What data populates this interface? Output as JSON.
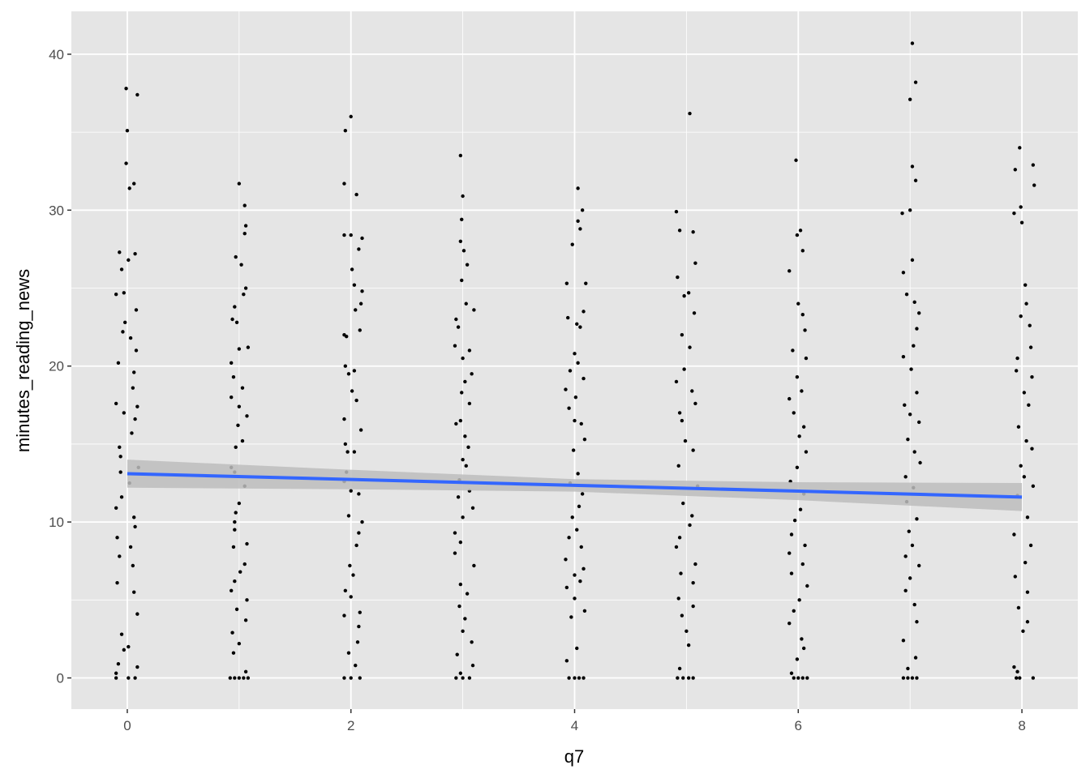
{
  "chart_data": {
    "type": "scatter",
    "title": "",
    "xlabel": "q7",
    "ylabel": "minutes_reading_news",
    "xlim": [
      -0.5,
      8.5
    ],
    "ylim": [
      -2,
      42.75
    ],
    "xticks": [
      0,
      2,
      4,
      6,
      8
    ],
    "yticks": [
      0,
      10,
      20,
      30,
      40
    ],
    "grid": true,
    "jitter": true,
    "colors": {
      "panel": "#e5e5e5",
      "grid": "#ffffff",
      "points": "#000000",
      "smooth_line": "#3366ff",
      "ci_band": "#bdbdbd"
    },
    "smooth": {
      "method": "linear",
      "x": [
        0,
        2,
        4,
        6,
        8
      ],
      "y": [
        13.1,
        12.73,
        12.35,
        11.98,
        11.6
      ],
      "ci_lower": [
        12.2,
        12.1,
        11.95,
        11.4,
        10.7
      ],
      "ci_upper": [
        14.0,
        13.35,
        12.75,
        12.55,
        12.5
      ]
    },
    "points": [
      [
        -0.01,
        37.8
      ],
      [
        0.09,
        37.4
      ],
      [
        0,
        35.1
      ],
      [
        -0.01,
        33
      ],
      [
        0.02,
        31.4
      ],
      [
        0.06,
        31.7
      ],
      [
        -0.07,
        27.3
      ],
      [
        0.07,
        27.2
      ],
      [
        0.01,
        26.8
      ],
      [
        -0.05,
        26.2
      ],
      [
        -0.1,
        24.6
      ],
      [
        -0.03,
        24.7
      ],
      [
        0.08,
        23.6
      ],
      [
        -0.02,
        22.8
      ],
      [
        -0.04,
        22.2
      ],
      [
        0.03,
        21.8
      ],
      [
        0.08,
        21
      ],
      [
        -0.08,
        20.2
      ],
      [
        0.06,
        19.6
      ],
      [
        0.05,
        18.6
      ],
      [
        -0.1,
        17.6
      ],
      [
        0.09,
        17.4
      ],
      [
        -0.03,
        17
      ],
      [
        0.07,
        16.6
      ],
      [
        0.04,
        15.7
      ],
      [
        -0.07,
        14.8
      ],
      [
        -0.06,
        14.2
      ],
      [
        0.1,
        13.5
      ],
      [
        -0.06,
        13.2
      ],
      [
        0.02,
        12.5
      ],
      [
        -0.05,
        11.6
      ],
      [
        -0.1,
        10.9
      ],
      [
        0.06,
        10.3
      ],
      [
        0.07,
        9.7
      ],
      [
        -0.09,
        9
      ],
      [
        0.03,
        8.4
      ],
      [
        -0.07,
        7.8
      ],
      [
        0.05,
        7.2
      ],
      [
        -0.09,
        6.1
      ],
      [
        0.06,
        5.5
      ],
      [
        0.09,
        4.1
      ],
      [
        -0.05,
        2.8
      ],
      [
        -0.03,
        1.8
      ],
      [
        0.01,
        2
      ],
      [
        0.09,
        0.7
      ],
      [
        -0.1,
        0.3
      ],
      [
        -0.1,
        0
      ],
      [
        0.01,
        0
      ],
      [
        0.07,
        0
      ],
      [
        -0.08,
        0.9
      ],
      [
        1,
        31.7
      ],
      [
        1.05,
        30.3
      ],
      [
        1.06,
        29
      ],
      [
        1.05,
        28.5
      ],
      [
        0.97,
        27
      ],
      [
        1.02,
        26.5
      ],
      [
        1.06,
        25
      ],
      [
        1.04,
        24.6
      ],
      [
        0.96,
        23.8
      ],
      [
        0.94,
        23
      ],
      [
        0.98,
        22.8
      ],
      [
        1.08,
        21.2
      ],
      [
        1,
        21.1
      ],
      [
        0.93,
        20.2
      ],
      [
        0.95,
        19.3
      ],
      [
        1.03,
        18.6
      ],
      [
        0.93,
        18
      ],
      [
        1,
        17.4
      ],
      [
        1.07,
        16.8
      ],
      [
        0.99,
        16.2
      ],
      [
        1.03,
        15.2
      ],
      [
        0.97,
        14.8
      ],
      [
        0.93,
        13.5
      ],
      [
        0.96,
        13.2
      ],
      [
        1.05,
        12.3
      ],
      [
        1,
        11.2
      ],
      [
        0.97,
        10.6
      ],
      [
        0.96,
        10
      ],
      [
        0.96,
        9.5
      ],
      [
        1.07,
        8.6
      ],
      [
        0.95,
        8.4
      ],
      [
        1.05,
        7.3
      ],
      [
        1.01,
        6.8
      ],
      [
        0.96,
        6.2
      ],
      [
        0.93,
        5.6
      ],
      [
        1.07,
        5
      ],
      [
        0.98,
        4.4
      ],
      [
        1.06,
        3.7
      ],
      [
        0.94,
        2.9
      ],
      [
        1,
        2.2
      ],
      [
        0.95,
        1.6
      ],
      [
        1.06,
        0.4
      ],
      [
        0.92,
        0
      ],
      [
        0.96,
        0
      ],
      [
        1,
        0
      ],
      [
        1.04,
        0
      ],
      [
        1.08,
        0
      ],
      [
        2,
        36
      ],
      [
        1.95,
        35.1
      ],
      [
        1.94,
        31.7
      ],
      [
        2.05,
        31
      ],
      [
        1.94,
        28.4
      ],
      [
        2,
        28.4
      ],
      [
        2.1,
        28.2
      ],
      [
        2.07,
        27.5
      ],
      [
        2.01,
        26.2
      ],
      [
        2.03,
        25.2
      ],
      [
        2.1,
        24.8
      ],
      [
        2.09,
        24
      ],
      [
        2.04,
        23.6
      ],
      [
        2.08,
        22.3
      ],
      [
        1.96,
        21.9
      ],
      [
        1.94,
        22
      ],
      [
        1.95,
        20
      ],
      [
        1.98,
        19.5
      ],
      [
        2.03,
        19.7
      ],
      [
        2.01,
        18.4
      ],
      [
        2.05,
        17.8
      ],
      [
        1.94,
        16.6
      ],
      [
        2.09,
        15.9
      ],
      [
        1.95,
        15
      ],
      [
        1.97,
        14.5
      ],
      [
        2.03,
        14.5
      ],
      [
        1.96,
        13.2
      ],
      [
        1.94,
        12.6
      ],
      [
        2,
        12
      ],
      [
        2.07,
        11.8
      ],
      [
        1.98,
        10.4
      ],
      [
        2.1,
        10
      ],
      [
        2.07,
        9.3
      ],
      [
        2.05,
        8.5
      ],
      [
        1.99,
        7.2
      ],
      [
        2.02,
        6.6
      ],
      [
        1.95,
        5.6
      ],
      [
        2,
        5.2
      ],
      [
        2.08,
        4.2
      ],
      [
        1.94,
        4
      ],
      [
        2.07,
        3.3
      ],
      [
        2.06,
        2.3
      ],
      [
        1.98,
        1.6
      ],
      [
        2.04,
        0.8
      ],
      [
        1.94,
        0
      ],
      [
        2,
        0
      ],
      [
        2.08,
        0
      ],
      [
        2.98,
        33.5
      ],
      [
        3,
        30.9
      ],
      [
        2.99,
        29.4
      ],
      [
        2.98,
        28
      ],
      [
        3.01,
        27.4
      ],
      [
        3.04,
        26.5
      ],
      [
        2.99,
        25.5
      ],
      [
        3.03,
        24
      ],
      [
        3.1,
        23.6
      ],
      [
        2.94,
        23
      ],
      [
        2.96,
        22.5
      ],
      [
        2.93,
        21.3
      ],
      [
        3.06,
        21
      ],
      [
        3,
        20.5
      ],
      [
        3.08,
        19.5
      ],
      [
        3.02,
        19
      ],
      [
        2.99,
        18.3
      ],
      [
        3.06,
        17.6
      ],
      [
        2.98,
        16.5
      ],
      [
        2.94,
        16.3
      ],
      [
        3.02,
        15.5
      ],
      [
        3.05,
        14.8
      ],
      [
        3,
        14
      ],
      [
        3.03,
        13.6
      ],
      [
        2.97,
        12.7
      ],
      [
        3.06,
        12
      ],
      [
        2.96,
        11.6
      ],
      [
        3.09,
        10.9
      ],
      [
        3,
        10.3
      ],
      [
        2.93,
        9.3
      ],
      [
        2.98,
        8.7
      ],
      [
        2.93,
        8
      ],
      [
        3.1,
        7.2
      ],
      [
        2.98,
        6
      ],
      [
        3.04,
        5.4
      ],
      [
        2.97,
        4.6
      ],
      [
        3.02,
        3.8
      ],
      [
        3,
        3
      ],
      [
        3.08,
        2.3
      ],
      [
        2.95,
        1.5
      ],
      [
        3.09,
        0.8
      ],
      [
        2.98,
        0.3
      ],
      [
        2.94,
        0
      ],
      [
        3,
        0
      ],
      [
        3.06,
        0
      ],
      [
        4.03,
        31.4
      ],
      [
        4.07,
        30
      ],
      [
        4.03,
        29.3
      ],
      [
        4.05,
        28.8
      ],
      [
        3.98,
        27.8
      ],
      [
        4.1,
        25.3
      ],
      [
        3.93,
        25.3
      ],
      [
        4.08,
        23.5
      ],
      [
        3.94,
        23.1
      ],
      [
        4.02,
        22.7
      ],
      [
        4.05,
        22.5
      ],
      [
        4,
        20.8
      ],
      [
        4.03,
        20.2
      ],
      [
        3.96,
        19.7
      ],
      [
        4.08,
        19.2
      ],
      [
        3.92,
        18.5
      ],
      [
        4.01,
        18
      ],
      [
        3.95,
        17.3
      ],
      [
        4.06,
        16.3
      ],
      [
        4,
        16.5
      ],
      [
        4.09,
        15.3
      ],
      [
        3.99,
        14.6
      ],
      [
        4.03,
        13.1
      ],
      [
        3.96,
        12.5
      ],
      [
        4.07,
        11.8
      ],
      [
        4.04,
        11
      ],
      [
        3.98,
        10.3
      ],
      [
        4.02,
        9.5
      ],
      [
        3.95,
        9
      ],
      [
        4.06,
        8.4
      ],
      [
        3.92,
        7.6
      ],
      [
        4.08,
        7
      ],
      [
        4,
        6.6
      ],
      [
        4.05,
        6.2
      ],
      [
        3.93,
        5.8
      ],
      [
        4,
        5.1
      ],
      [
        4.09,
        4.3
      ],
      [
        3.97,
        3.9
      ],
      [
        4.02,
        1.9
      ],
      [
        3.93,
        1.1
      ],
      [
        3.95,
        0
      ],
      [
        4,
        0
      ],
      [
        4.04,
        0
      ],
      [
        4.08,
        0
      ],
      [
        5.03,
        36.2
      ],
      [
        4.91,
        29.9
      ],
      [
        4.94,
        28.7
      ],
      [
        5.06,
        28.6
      ],
      [
        5.08,
        26.6
      ],
      [
        4.92,
        25.7
      ],
      [
        5.02,
        24.7
      ],
      [
        4.98,
        24.5
      ],
      [
        5.07,
        23.4
      ],
      [
        4.96,
        22
      ],
      [
        5.03,
        21.2
      ],
      [
        4.98,
        19.8
      ],
      [
        4.91,
        19
      ],
      [
        5.05,
        18.4
      ],
      [
        5.08,
        17.6
      ],
      [
        4.94,
        17
      ],
      [
        4.96,
        16.5
      ],
      [
        4.99,
        15.2
      ],
      [
        5.06,
        14.6
      ],
      [
        4.93,
        13.6
      ],
      [
        5.1,
        12.3
      ],
      [
        4.97,
        11.2
      ],
      [
        5.05,
        10.4
      ],
      [
        5.03,
        9.8
      ],
      [
        4.94,
        9
      ],
      [
        4.91,
        8.4
      ],
      [
        5.08,
        7.3
      ],
      [
        4.95,
        6.7
      ],
      [
        5.06,
        6.1
      ],
      [
        4.93,
        5.1
      ],
      [
        5.06,
        4.6
      ],
      [
        4.96,
        4
      ],
      [
        5,
        3
      ],
      [
        5.02,
        2.1
      ],
      [
        4.94,
        0.6
      ],
      [
        4.92,
        0
      ],
      [
        4.97,
        0
      ],
      [
        5.02,
        0
      ],
      [
        5.06,
        0
      ],
      [
        5.98,
        33.2
      ],
      [
        6.02,
        28.7
      ],
      [
        5.99,
        28.4
      ],
      [
        6.04,
        27.4
      ],
      [
        5.92,
        26.1
      ],
      [
        6,
        24
      ],
      [
        6.04,
        23.3
      ],
      [
        6.06,
        22.3
      ],
      [
        5.95,
        21
      ],
      [
        6.07,
        20.5
      ],
      [
        5.99,
        19.3
      ],
      [
        6.03,
        18.4
      ],
      [
        5.92,
        17.9
      ],
      [
        5.96,
        17
      ],
      [
        6.05,
        16.1
      ],
      [
        6.01,
        15.5
      ],
      [
        6.07,
        14.5
      ],
      [
        5.99,
        13.5
      ],
      [
        5.93,
        12.6
      ],
      [
        6.05,
        11.8
      ],
      [
        6.02,
        10.8
      ],
      [
        5.97,
        10.1
      ],
      [
        5.94,
        9.2
      ],
      [
        6.06,
        8.5
      ],
      [
        5.92,
        8
      ],
      [
        6.04,
        7.3
      ],
      [
        5.94,
        6.7
      ],
      [
        6.08,
        5.9
      ],
      [
        6.01,
        5
      ],
      [
        5.96,
        4.3
      ],
      [
        5.92,
        3.5
      ],
      [
        6.03,
        2.5
      ],
      [
        6.05,
        1.9
      ],
      [
        5.99,
        1.2
      ],
      [
        5.94,
        0.3
      ],
      [
        5.96,
        0
      ],
      [
        6,
        0
      ],
      [
        6.04,
        0
      ],
      [
        6.08,
        0
      ],
      [
        7.02,
        40.7
      ],
      [
        7.05,
        38.2
      ],
      [
        7,
        37.1
      ],
      [
        7.02,
        32.8
      ],
      [
        7.05,
        31.9
      ],
      [
        7,
        30
      ],
      [
        6.93,
        29.8
      ],
      [
        7.02,
        26.8
      ],
      [
        6.94,
        26
      ],
      [
        6.97,
        24.6
      ],
      [
        7.04,
        24.1
      ],
      [
        7.08,
        23.4
      ],
      [
        7.06,
        22.4
      ],
      [
        7.03,
        21.3
      ],
      [
        6.94,
        20.6
      ],
      [
        7.01,
        19.8
      ],
      [
        7.06,
        18.3
      ],
      [
        6.95,
        17.5
      ],
      [
        7,
        16.9
      ],
      [
        7.08,
        16.4
      ],
      [
        6.98,
        15.3
      ],
      [
        7.04,
        14.5
      ],
      [
        7.09,
        13.8
      ],
      [
        6.96,
        12.9
      ],
      [
        7.03,
        12.2
      ],
      [
        6.97,
        11.3
      ],
      [
        7.06,
        10.2
      ],
      [
        6.99,
        9.4
      ],
      [
        7.02,
        8.5
      ],
      [
        6.96,
        7.8
      ],
      [
        7.08,
        7.2
      ],
      [
        7,
        6.4
      ],
      [
        6.96,
        5.6
      ],
      [
        7.04,
        4.7
      ],
      [
        7.06,
        3.6
      ],
      [
        6.94,
        2.4
      ],
      [
        7.05,
        1.3
      ],
      [
        6.98,
        0.6
      ],
      [
        6.94,
        0
      ],
      [
        6.98,
        0
      ],
      [
        7.02,
        0
      ],
      [
        7.06,
        0
      ],
      [
        7.98,
        34
      ],
      [
        8.1,
        32.9
      ],
      [
        7.94,
        32.6
      ],
      [
        8.11,
        31.6
      ],
      [
        7.99,
        30.2
      ],
      [
        7.93,
        29.8
      ],
      [
        8,
        29.2
      ],
      [
        8.03,
        25.2
      ],
      [
        8.04,
        24
      ],
      [
        7.99,
        23.2
      ],
      [
        8.07,
        22.6
      ],
      [
        8.08,
        21.2
      ],
      [
        7.96,
        20.5
      ],
      [
        7.95,
        19.7
      ],
      [
        8.09,
        19.3
      ],
      [
        8.02,
        18.3
      ],
      [
        8.06,
        17.5
      ],
      [
        7.97,
        16.1
      ],
      [
        8.04,
        15.2
      ],
      [
        8.09,
        14.7
      ],
      [
        7.99,
        13.6
      ],
      [
        8.02,
        12.9
      ],
      [
        8.1,
        12.3
      ],
      [
        7.96,
        11.7
      ],
      [
        8.05,
        10.3
      ],
      [
        7.93,
        9.2
      ],
      [
        8.08,
        8.5
      ],
      [
        8.03,
        7.4
      ],
      [
        7.94,
        6.5
      ],
      [
        8.05,
        5.5
      ],
      [
        7.97,
        4.5
      ],
      [
        8.05,
        3.6
      ],
      [
        8.01,
        3
      ],
      [
        7.93,
        0.7
      ],
      [
        7.96,
        0.4
      ],
      [
        7.95,
        0
      ],
      [
        7.98,
        0
      ],
      [
        8.1,
        0
      ]
    ]
  }
}
